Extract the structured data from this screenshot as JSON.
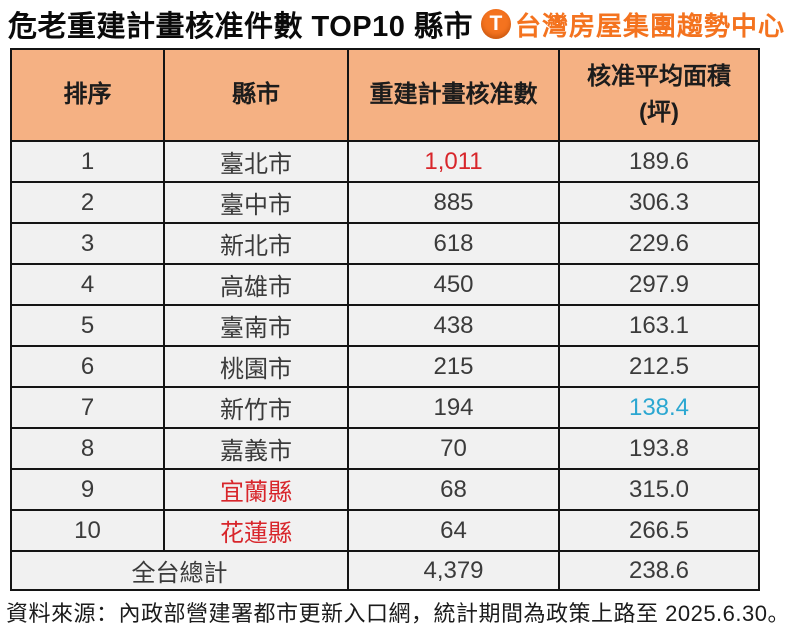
{
  "title": "危老重建計畫核准件數 TOP10 縣市",
  "logo": {
    "icon": "T",
    "brand": "台灣房屋集團趨勢中心"
  },
  "colors": {
    "header_bg": "#F5B183",
    "row_bg": "#F1F1F1",
    "border": "#141414",
    "cell_text": "#3B3B3B",
    "highlight_red": "#D8262B",
    "highlight_cyan": "#2BA7D1",
    "brand_orange": "#F4731F"
  },
  "table": {
    "headers": {
      "rank": "排序",
      "city": "縣市",
      "count": "重建計畫核准數",
      "area_line1": "核准平均面積",
      "area_line2": "(坪)"
    },
    "rows": [
      {
        "rank": "1",
        "city": "臺北市",
        "count": "1,011",
        "area": "189.6"
      },
      {
        "rank": "2",
        "city": "臺中市",
        "count": "885",
        "area": "306.3"
      },
      {
        "rank": "3",
        "city": "新北市",
        "count": "618",
        "area": "229.6"
      },
      {
        "rank": "4",
        "city": "高雄市",
        "count": "450",
        "area": "297.9"
      },
      {
        "rank": "5",
        "city": "臺南市",
        "count": "438",
        "area": "163.1"
      },
      {
        "rank": "6",
        "city": "桃園市",
        "count": "215",
        "area": "212.5"
      },
      {
        "rank": "7",
        "city": "新竹市",
        "count": "194",
        "area": "138.4"
      },
      {
        "rank": "8",
        "city": "嘉義市",
        "count": "70",
        "area": "193.8"
      },
      {
        "rank": "9",
        "city": "宜蘭縣",
        "count": "68",
        "area": "315.0"
      },
      {
        "rank": "10",
        "city": "花蓮縣",
        "count": "64",
        "area": "266.5"
      }
    ],
    "total": {
      "label": "全台總計",
      "count": "4,379",
      "area": "238.6"
    }
  },
  "footer": "資料來源：內政部營建署都市更新入口網，統計期間為政策上路至 2025.6.30。"
}
